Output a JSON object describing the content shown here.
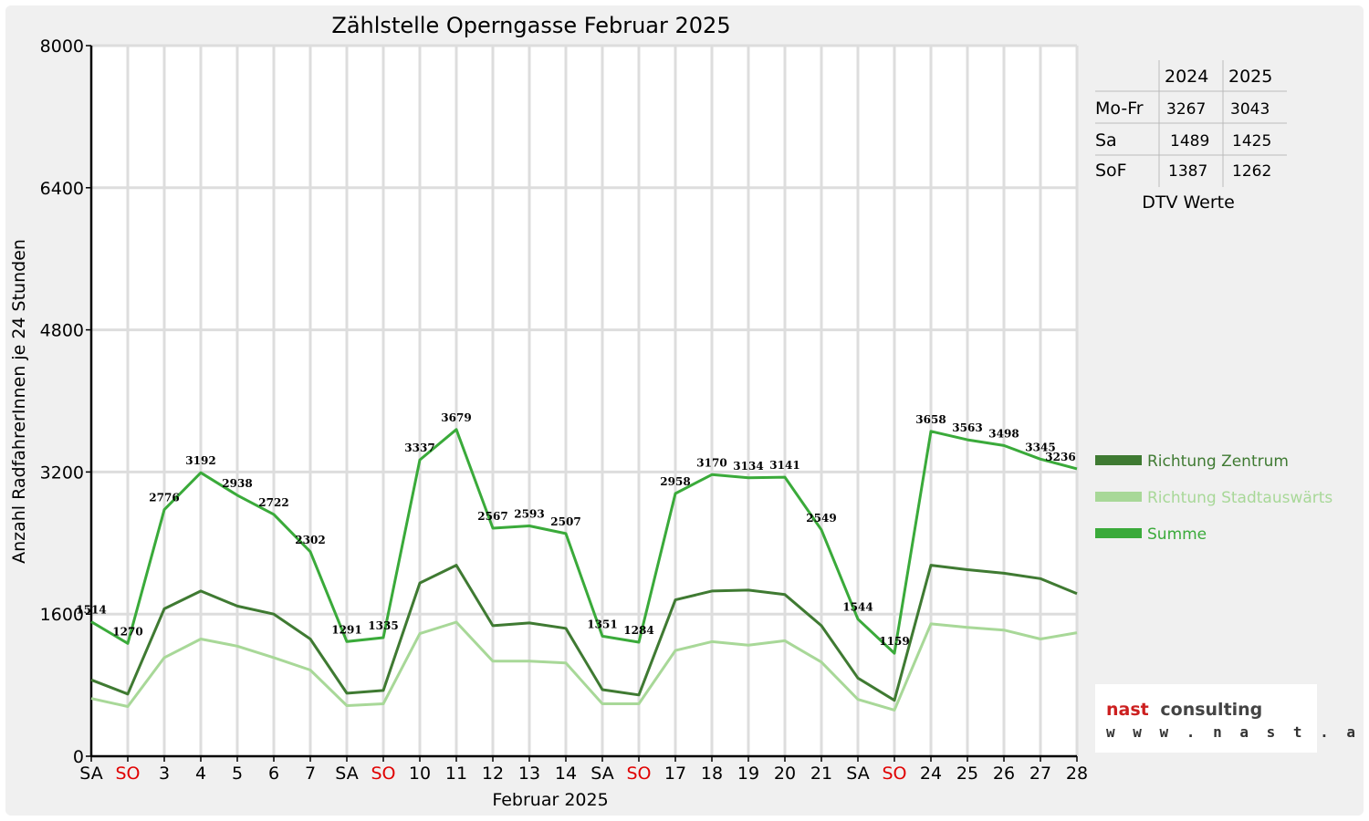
{
  "chart_data": {
    "type": "line",
    "title": "Zählstelle Operngasse Februar 2025",
    "xlabel": "Februar 2025",
    "ylabel": "Anzahl RadfahrerInnen je 24 Stunden",
    "ylim": [
      0,
      8000
    ],
    "yticks": [
      "0",
      "1600",
      "3200",
      "4800",
      "6400",
      "8000"
    ],
    "grid": true,
    "legend_position": "right",
    "categories": [
      "SA",
      "SO",
      "3",
      "4",
      "5",
      "6",
      "7",
      "SA",
      "SO",
      "10",
      "11",
      "12",
      "13",
      "14",
      "SA",
      "SO",
      "17",
      "18",
      "19",
      "20",
      "21",
      "SA",
      "SO",
      "24",
      "25",
      "26",
      "27",
      "28"
    ],
    "sunday_indices": [
      1,
      8,
      15,
      22
    ],
    "series": [
      {
        "name": "Richtung Zentrum",
        "color": "#3f7a32",
        "values": [
          860,
          700,
          1660,
          1860,
          1690,
          1600,
          1320,
          710,
          740,
          1950,
          2150,
          1470,
          1500,
          1440,
          750,
          690,
          1760,
          1860,
          1870,
          1820,
          1470,
          880,
          630,
          2150,
          2100,
          2060,
          2000,
          1830
        ]
      },
      {
        "name": "Richtung Stadtauswärts",
        "color": "#a8d898",
        "values": [
          650,
          560,
          1110,
          1320,
          1240,
          1110,
          970,
          570,
          590,
          1380,
          1510,
          1070,
          1070,
          1050,
          590,
          590,
          1190,
          1290,
          1250,
          1300,
          1060,
          640,
          520,
          1490,
          1450,
          1420,
          1320,
          1390
        ]
      },
      {
        "name": "Summe",
        "color": "#3aaa3a",
        "values": [
          1514,
          1270,
          2776,
          3192,
          2938,
          2722,
          2302,
          1291,
          1335,
          3337,
          3679,
          2567,
          2593,
          2507,
          1351,
          1284,
          2958,
          3170,
          3134,
          3141,
          2549,
          1544,
          1159,
          3658,
          3563,
          3498,
          3345,
          3236
        ]
      }
    ],
    "data_labels": [
      "1514",
      "1270",
      "2776",
      "3192",
      "2938",
      "2722",
      "2302",
      "1291",
      "1335",
      "3337",
      "3679",
      "2567",
      "2593",
      "2507",
      "1351",
      "1284",
      "2958",
      "3170",
      "3134",
      "3141",
      "2549",
      "1544",
      "1159",
      "3658",
      "3563",
      "3498",
      "3345",
      "3236"
    ]
  },
  "dtv_table": {
    "headers": [
      "2024",
      "2025"
    ],
    "rows": [
      {
        "label": "Mo-Fr",
        "v2024": "3267",
        "v2025": "3043"
      },
      {
        "label": "Sa",
        "v2024": "1489",
        "v2025": "1425"
      },
      {
        "label": "SoF",
        "v2024": "1387",
        "v2025": "1262"
      }
    ],
    "caption": "DTV Werte"
  },
  "logo": {
    "brand_a": "nast",
    "brand_b": "consulting",
    "url": "w w w . n a s t . a t",
    "color_a": "#cc1f1f",
    "color_b": "#444444"
  }
}
